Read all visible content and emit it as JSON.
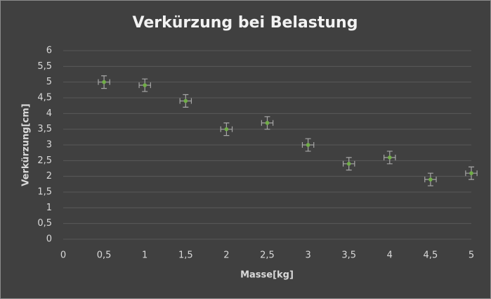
{
  "chart_data": {
    "type": "scatter",
    "title": "Verkürzung bei Belastung",
    "x_label": "Masse[kg]",
    "y_label": "Verkürzung[cm]",
    "x": [
      0.5,
      1,
      1.5,
      2,
      2.5,
      3,
      3.5,
      4,
      4.5,
      5
    ],
    "values": [
      5,
      4.9,
      4.4,
      3.5,
      3.7,
      3.0,
      2.4,
      2.6,
      1.9,
      2.1
    ],
    "xerr": 0.07,
    "yerr": 0.2,
    "color": "#70ad47",
    "error_color": "#a6a6a6",
    "xlim": [
      0,
      5
    ],
    "ylim": [
      0,
      6
    ],
    "xticks": [
      0,
      {
        "value": 0.5,
        "label": "0,5"
      },
      1,
      {
        "value": 1.5,
        "label": "1,5"
      },
      2,
      {
        "value": 2.5,
        "label": "2,5"
      },
      3,
      {
        "value": 3.5,
        "label": "3,5"
      },
      4,
      {
        "value": 4.5,
        "label": "4,5"
      },
      5
    ],
    "yticks": [
      0,
      {
        "value": 0.5,
        "label": "0,5"
      },
      1,
      {
        "value": 1.5,
        "label": "1,5"
      },
      2,
      {
        "value": 2.5,
        "label": "2,5"
      },
      3,
      {
        "value": 3.5,
        "label": "3,5"
      },
      4,
      {
        "value": 4.5,
        "label": "4,5"
      },
      5,
      {
        "value": 5.5,
        "label": "5,5"
      },
      6
    ],
    "grid": true
  }
}
